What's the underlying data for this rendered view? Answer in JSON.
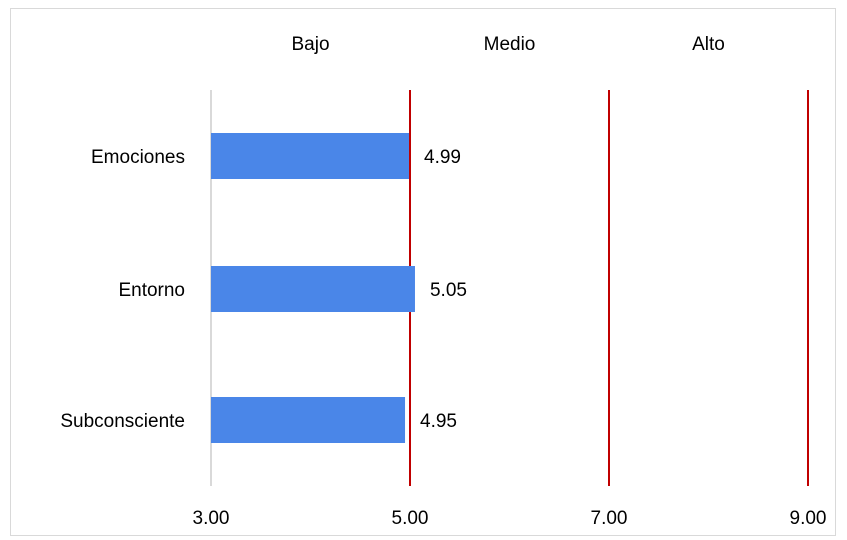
{
  "chart_data": {
    "type": "bar",
    "orientation": "horizontal",
    "categories": [
      "Emociones",
      "Entorno",
      "Subconsciente"
    ],
    "values": [
      4.99,
      5.05,
      4.95
    ],
    "value_labels": [
      "4.99",
      "5.05",
      "4.95"
    ],
    "xlim": [
      3.0,
      9.0
    ],
    "x_ticks": [
      "3.00",
      "5.00",
      "7.00",
      "9.00"
    ],
    "reference_lines": [
      5.0,
      7.0,
      9.0
    ],
    "bands": [
      {
        "label": "Bajo",
        "from": 3.0,
        "to": 5.0
      },
      {
        "label": "Medio",
        "from": 5.0,
        "to": 7.0
      },
      {
        "label": "Alto",
        "from": 7.0,
        "to": 9.0
      }
    ],
    "bar_color": "#4a86e8",
    "reference_line_color": "#c00000",
    "grid": false,
    "legend": "none"
  }
}
